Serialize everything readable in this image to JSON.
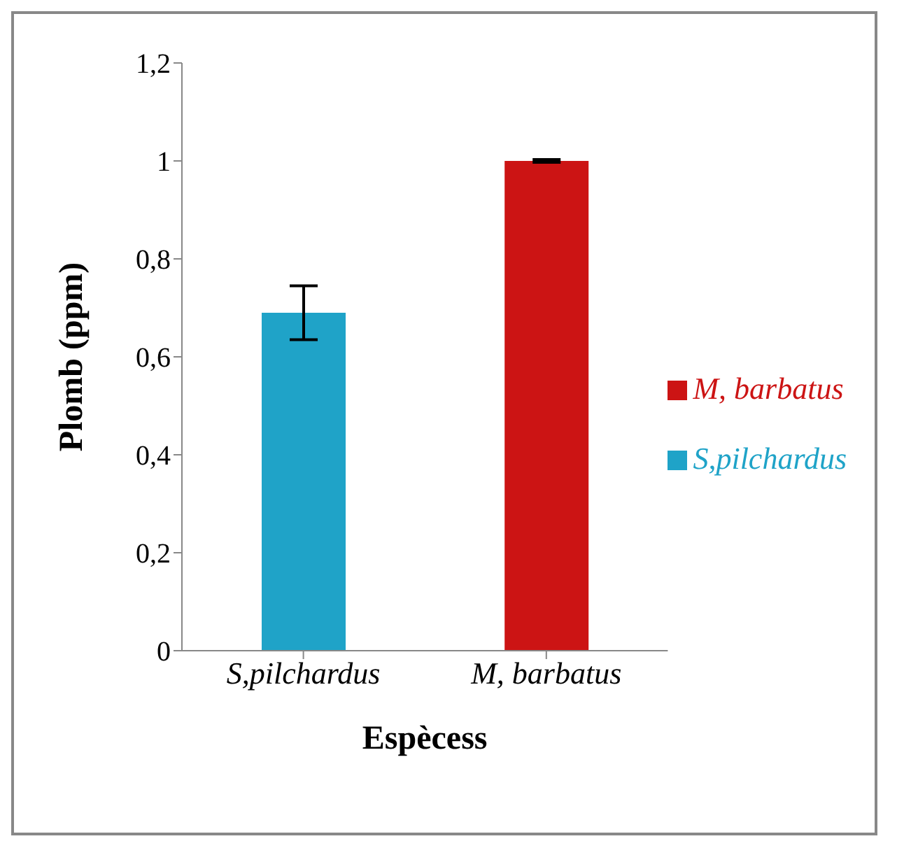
{
  "chart_data": {
    "type": "bar",
    "xlabel": "Espècess",
    "ylabel": "Plomb (ppm)",
    "categories": [
      "S,pilchardus",
      "M, barbatus"
    ],
    "stacked": true,
    "series": [
      {
        "name": "S,pilchardus",
        "color": "#1fa3c8",
        "values": [
          0.69,
          null
        ],
        "errors": [
          0.055,
          null
        ]
      },
      {
        "name": "M, barbatus",
        "color": "#cc1414",
        "values": [
          null,
          1.0
        ],
        "errors": [
          null,
          0.003
        ]
      }
    ],
    "ylim": [
      0,
      1.2
    ],
    "yticks": [
      {
        "value": 0,
        "label": "0"
      },
      {
        "value": 0.2,
        "label": "0,2"
      },
      {
        "value": 0.4,
        "label": "0,4"
      },
      {
        "value": 0.6,
        "label": "0,6"
      },
      {
        "value": 0.8,
        "label": "0,8"
      },
      {
        "value": 1,
        "label": "1"
      },
      {
        "value": 1.2,
        "label": "1,2"
      }
    ],
    "grid": false,
    "legend": "right"
  }
}
